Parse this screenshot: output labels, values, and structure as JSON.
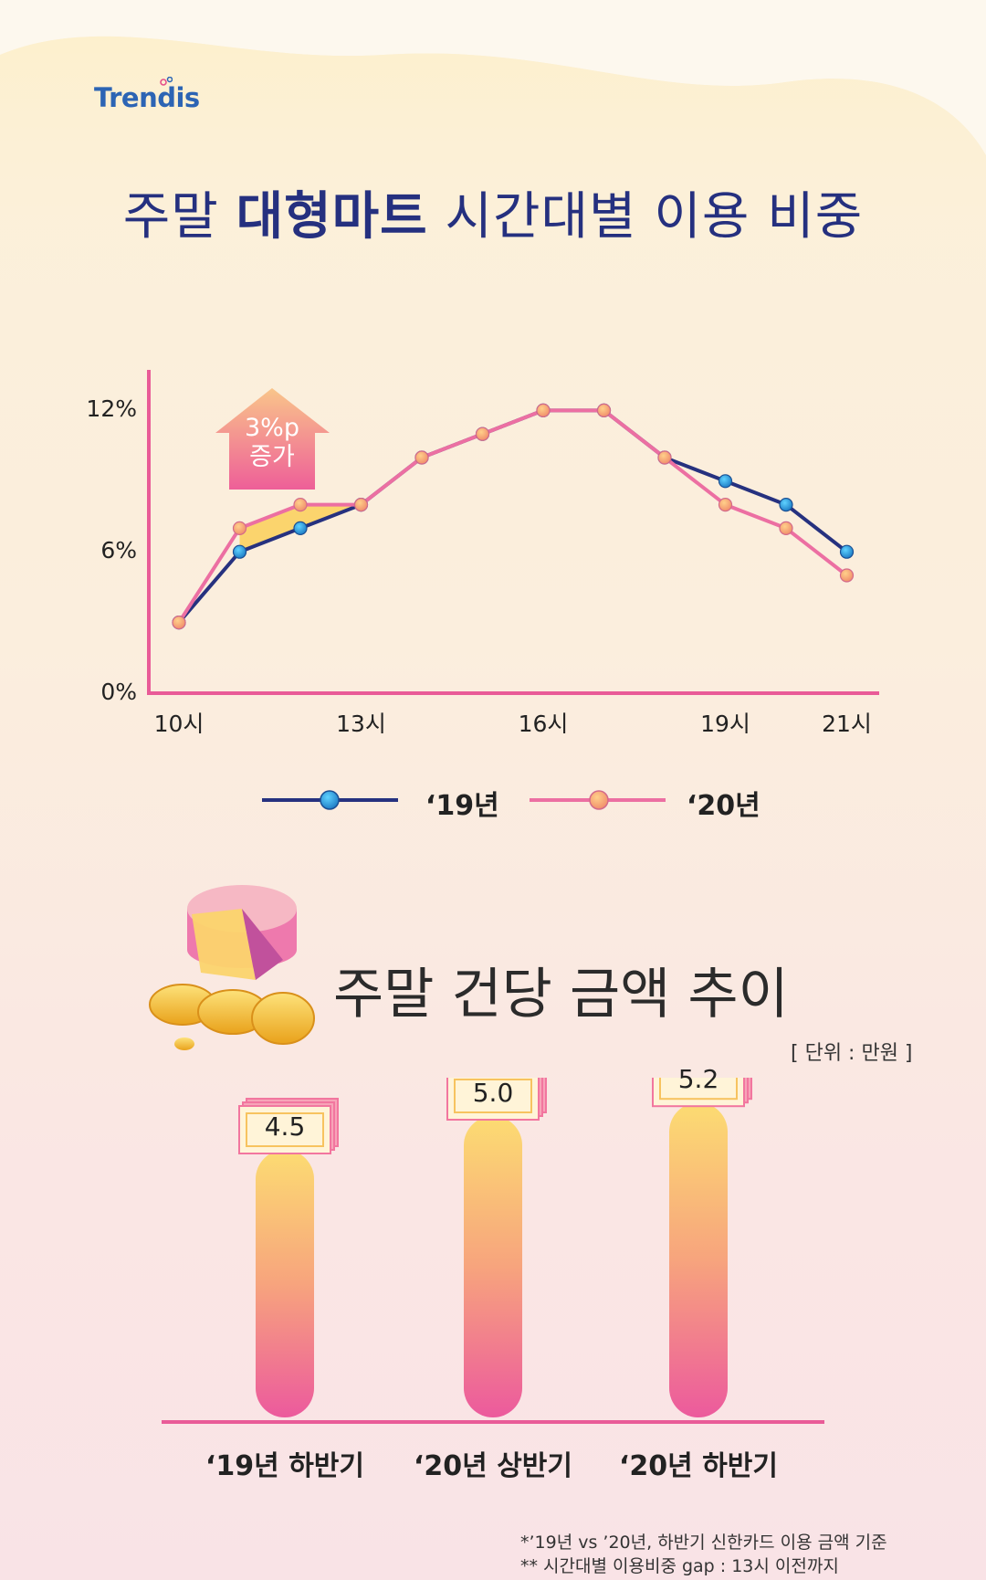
{
  "brand": {
    "logo": "Trendis"
  },
  "header": {
    "title_part1": "주말",
    "title_bold": "대형마트",
    "title_part2": "시간대별 이용 비중"
  },
  "callout": {
    "line1": "3%p",
    "line2": "증가"
  },
  "section2": {
    "title": "주말 건당 금액 추이",
    "unit": "[ 단위 : 만원 ]"
  },
  "footnotes": [
    "*’19년 vs ’20년, 하반기 신한카드 이용 금액 기준",
    "** 시간대별 이용비중 gap : 13시 이전까지"
  ],
  "colors": {
    "navy": "#26317f",
    "pink": "#ec6fa2",
    "axis": "#e95b97",
    "bar_top": "#fbd774",
    "bar_bottom": "#ec5a9d",
    "dot_blue": "#2aa4e0",
    "dot_orange": "#f9b06b"
  },
  "chart_data": [
    {
      "type": "line",
      "title": "",
      "x": [
        "10시",
        "11시",
        "12시",
        "13시",
        "14시",
        "15시",
        "16시",
        "17시",
        "18시",
        "19시",
        "20시",
        "21시"
      ],
      "x_tick_labels": [
        "10시",
        "13시",
        "16시",
        "19시",
        "21시"
      ],
      "y_tick_labels": [
        "0%",
        "6%",
        "12%"
      ],
      "ylim": [
        0,
        12
      ],
      "series": [
        {
          "name": "‘19년",
          "values": [
            3,
            6,
            7,
            8,
            10,
            11,
            12,
            12,
            10,
            9,
            8,
            6
          ]
        },
        {
          "name": "‘20년",
          "values": [
            3,
            7,
            8,
            8,
            10,
            11,
            12,
            12,
            10,
            8,
            7,
            5
          ]
        }
      ],
      "annotation": "3%p 증가",
      "legend_position": "bottom",
      "grid": false
    },
    {
      "type": "bar",
      "categories": [
        "‘19년 하반기",
        "‘20년 상반기",
        "‘20년 하반기"
      ],
      "values": [
        4.5,
        5.0,
        5.2
      ],
      "value_labels": [
        "4.5",
        "5.0",
        "5.2"
      ],
      "unit": "만원"
    }
  ]
}
